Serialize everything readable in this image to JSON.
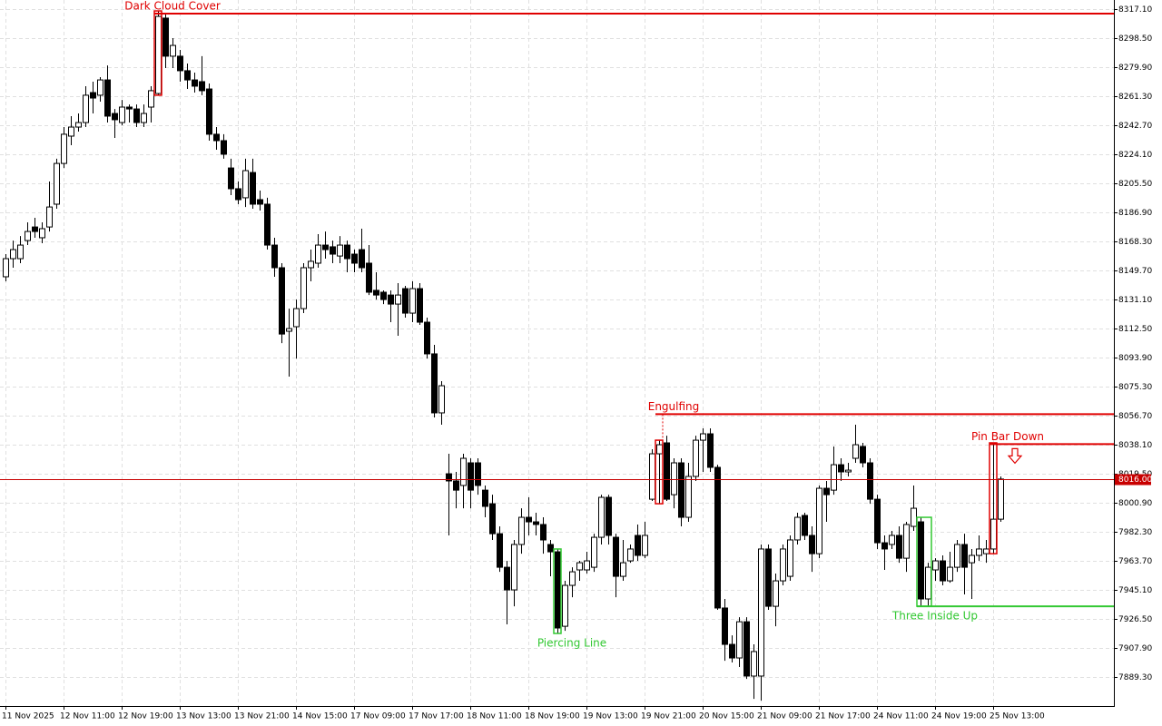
{
  "chart_data": {
    "type": "candlestick",
    "categories": [
      "11 Nov 2025",
      null,
      null,
      null,
      null,
      null,
      null,
      null,
      "12 Nov 11:00",
      null,
      null,
      null,
      null,
      null,
      null,
      null,
      "12 Nov 19:00",
      null,
      null,
      null,
      null,
      null,
      null,
      null,
      "13 Nov 13:00",
      null,
      null,
      null,
      null,
      null,
      null,
      null,
      "13 Nov 21:00",
      null,
      null,
      null,
      null,
      null,
      null,
      null,
      "14 Nov 15:00",
      null,
      null,
      null,
      null,
      null,
      null,
      null,
      "17 Nov 09:00",
      null,
      null,
      null,
      null,
      null,
      null,
      null,
      "17 Nov 17:00",
      null,
      null,
      null,
      null,
      null,
      null,
      null,
      "18 Nov 11:00",
      null,
      null,
      null,
      null,
      null,
      null,
      null,
      "18 Nov 19:00",
      null,
      null,
      null,
      null,
      null,
      null,
      null,
      "19 Nov 13:00",
      null,
      null,
      null,
      null,
      null,
      null,
      null,
      "19 Nov 21:00",
      null,
      null,
      null,
      null,
      null,
      null,
      null,
      "20 Nov 15:00",
      null,
      null,
      null,
      null,
      null,
      null,
      null,
      "21 Nov 09:00",
      null,
      null,
      null,
      null,
      null,
      null,
      null,
      "21 Nov 17:00",
      null,
      null,
      null,
      null,
      null,
      null,
      null,
      "24 Nov 11:00",
      null,
      null,
      null,
      null,
      null,
      null,
      null,
      "24 Nov 19:00",
      null,
      null,
      null,
      null,
      null,
      null,
      null,
      "25 Nov 13:00",
      null
    ],
    "open": [
      8145.6,
      8157.2,
      8157.2,
      8168.8,
      8177.5,
      8170.6,
      8177.5,
      8192.1,
      8218.2,
      8235.7,
      8241.5,
      8244.4,
      8263.6,
      8261.9,
      8271.7,
      8250.2,
      8244.4,
      8254.3,
      8253.1,
      8244.4,
      8254.3,
      8263.0,
      8311.3,
      8286.9,
      8286.9,
      8277.6,
      8271.7,
      8270.6,
      8265.9,
      8236.9,
      8232.8,
      8215.3,
      8202.0,
      8196.2,
      8212.4,
      8195.0,
      8192.1,
      8165.9,
      8151.4,
      8110.7,
      8113.6,
      8125.2,
      8151.4,
      8154.3,
      8165.9,
      8164.8,
      8158.9,
      8165.9,
      8160.1,
      8163.0,
      8154.3,
      8136.9,
      8135.7,
      8133.9,
      8128.1,
      8138.0,
      8122.3,
      8138.0,
      8116.5,
      8096.2,
      8058.4,
      8019.4,
      8014.8,
      8011.9,
      8026.4,
      8026.4,
      8008.9,
      8000.2,
      7981.0,
      7959.5,
      7945.0,
      7974.1,
      7991.5,
      7988.6,
      7986.9,
      7974.1,
      7969.4,
      7921.7,
      7947.9,
      7957.8,
      7957.8,
      7959.5,
      7978.7,
      8004.3,
      7978.7,
      7953.7,
      7963.6,
      7979.9,
      7967.1,
      8003.1,
      8032.2,
      8039.2,
      8006.0,
      8026.4,
      7991.5,
      8017.7,
      8040.9,
      8045.0,
      8023.5,
      7933.4,
      7910.1,
      7901.4,
      7924.6,
      7889.8,
      7889.8,
      7971.2,
      7934.5,
      7950.8,
      7953.7,
      7977.0,
      7992.7,
      7979.9,
      7968.2,
      8010.1,
      8008.9,
      8025.2,
      8020.6,
      8029.3,
      8036.9,
      8026.4,
      8003.1,
      7975.2,
      7974.1,
      7979.9,
      7965.3,
      7985.7,
      7988.6,
      7939.2,
      7957.8,
      7963.6,
      7950.8,
      7959.5,
      7974.1,
      7962.4,
      7967.1,
      7968.2,
      7971.2,
      7990.3
    ],
    "high": [
      8160.1,
      8168.8,
      8171.7,
      8180.5,
      8183.4,
      8180.5,
      8206.6,
      8221.2,
      8241.5,
      8248.5,
      8250.2,
      8267.7,
      8270.6,
      8273.5,
      8281.0,
      8253.1,
      8258.9,
      8256.0,
      8256.0,
      8256.0,
      8267.7,
      8315.9,
      8314.2,
      8298.5,
      8290.9,
      8282.2,
      8276.4,
      8286.9,
      8269.4,
      8241.5,
      8236.9,
      8221.2,
      8206.6,
      8221.2,
      8221.2,
      8200.8,
      8196.2,
      8170.6,
      8154.3,
      8125.2,
      8131.0,
      8154.3,
      8163.0,
      8172.9,
      8174.6,
      8168.8,
      8171.7,
      8168.8,
      8163.0,
      8176.4,
      8165.9,
      8148.5,
      8136.9,
      8136.9,
      8141.5,
      8139.8,
      8142.7,
      8141.5,
      8119.4,
      8102.0,
      8078.7,
      8032.2,
      8020.6,
      8032.2,
      8029.3,
      8029.3,
      8011.9,
      8006.0,
      7985.7,
      7963.6,
      7977.0,
      7997.3,
      8004.3,
      7994.4,
      7991.5,
      7977.0,
      7971.2,
      7950.8,
      7959.5,
      7963.6,
      7969.4,
      7981.0,
      8006.0,
      8006.0,
      7981.0,
      7977.0,
      7974.1,
      7986.9,
      7988.6,
      8035.1,
      8040.9,
      8043.8,
      8029.3,
      8029.3,
      8026.4,
      8043.8,
      8048.5,
      8048.5,
      8025.2,
      7939.2,
      7915.9,
      7927.5,
      7927.5,
      7910.1,
      7974.1,
      7974.1,
      7955.5,
      7974.1,
      7979.9,
      7994.4,
      7994.4,
      7985.7,
      8011.9,
      8014.8,
      8036.9,
      8029.3,
      8026.4,
      8050.8,
      8039.2,
      8029.3,
      8006.0,
      7979.9,
      7982.8,
      7985.7,
      7988.6,
      8011.9,
      7991.5,
      7962.4,
      7965.3,
      7967.1,
      7969.4,
      7977.0,
      7981.0,
      7971.2,
      7979.9,
      7977.0,
      8039.2,
      8017.7
    ],
    "low": [
      8142.7,
      8151.4,
      8154.3,
      8165.9,
      8170.6,
      8167.1,
      8174.6,
      8189.2,
      8215.3,
      8229.9,
      8238.6,
      8241.5,
      8250.2,
      8257.8,
      8244.4,
      8234.5,
      8242.7,
      8244.4,
      8241.5,
      8241.5,
      8244.4,
      8261.9,
      8279.3,
      8279.3,
      8270.6,
      8265.9,
      8263.6,
      8261.9,
      8232.8,
      8227.0,
      8221.2,
      8197.9,
      8192.1,
      8190.3,
      8189.2,
      8188.0,
      8163.0,
      8145.6,
      8103.1,
      8081.6,
      8093.2,
      8122.3,
      8142.7,
      8151.4,
      8157.2,
      8154.3,
      8154.3,
      8148.5,
      8148.5,
      8148.5,
      8133.9,
      8131.0,
      8128.1,
      8116.5,
      8107.8,
      8119.4,
      8116.5,
      8114.8,
      8093.2,
      8055.5,
      8050.8,
      7979.9,
      7997.3,
      7997.3,
      7997.3,
      8006.0,
      7991.5,
      7977.0,
      7956.6,
      7922.9,
      7934.5,
      7968.2,
      7979.9,
      7979.9,
      7968.2,
      7953.7,
      7917.1,
      7918.8,
      7940.3,
      7950.8,
      7955.5,
      7956.6,
      7974.1,
      7974.1,
      7940.3,
      7950.8,
      7962.4,
      7963.6,
      7965.3,
      8002.0,
      8000.2,
      8002.0,
      7997.3,
      7985.7,
      7988.6,
      8014.8,
      8020.6,
      8020.6,
      7932.2,
      7899.6,
      7898.5,
      7895.6,
      7888.0,
      7875.2,
      7874.1,
      7932.2,
      7921.7,
      7947.9,
      7950.8,
      7974.1,
      7977.0,
      7956.6,
      7965.3,
      7988.6,
      8006.0,
      8014.8,
      8017.7,
      8026.4,
      8023.5,
      8000.2,
      7971.2,
      7957.8,
      7971.2,
      7962.4,
      7956.6,
      7982.8,
      7934.5,
      7934.5,
      7950.8,
      7947.9,
      7949.6,
      7956.6,
      7942.1,
      7939.2,
      7963.6,
      7962.4,
      7968.2,
      7988.6
    ],
    "close": [
      8157.2,
      8163.0,
      8165.9,
      8174.6,
      8174.6,
      8176.4,
      8190.3,
      8218.2,
      8236.9,
      8241.5,
      8244.4,
      8261.9,
      8260.1,
      8271.7,
      8248.5,
      8246.2,
      8254.3,
      8253.1,
      8244.4,
      8250.2,
      8264.8,
      8312.4,
      8286.9,
      8293.8,
      8277.6,
      8271.7,
      8267.7,
      8264.8,
      8236.9,
      8232.8,
      8224.1,
      8202.0,
      8195.0,
      8213.6,
      8192.1,
      8192.1,
      8165.9,
      8151.4,
      8108.9,
      8112.4,
      8125.2,
      8151.4,
      8155.5,
      8165.9,
      8163.0,
      8160.1,
      8165.9,
      8157.2,
      8154.3,
      8151.4,
      8135.7,
      8133.9,
      8131.0,
      8128.1,
      8133.9,
      8122.3,
      8138.0,
      8116.5,
      8096.2,
      8058.4,
      8075.8,
      8014.8,
      8008.9,
      8029.3,
      8008.9,
      8011.9,
      7998.5,
      7981.0,
      7959.5,
      7945.0,
      7974.1,
      7991.5,
      7988.6,
      7986.9,
      7977.0,
      7969.4,
      7920.6,
      7947.9,
      7956.6,
      7962.4,
      7963.6,
      7978.7,
      8004.3,
      7979.9,
      7953.7,
      7962.4,
      7971.2,
      7967.1,
      7979.9,
      8032.2,
      8038.0,
      8003.1,
      8026.4,
      7991.5,
      8017.7,
      8040.9,
      8045.0,
      8023.5,
      7933.4,
      7910.1,
      7901.4,
      7924.6,
      7889.8,
      7905.5,
      7971.2,
      7934.5,
      7950.8,
      7971.2,
      7977.0,
      7991.5,
      7979.9,
      7968.2,
      8010.1,
      8006.0,
      8025.2,
      8020.6,
      8021.7,
      8038.0,
      8026.4,
      8003.1,
      7975.2,
      7971.2,
      7979.9,
      7965.3,
      7986.9,
      7997.3,
      7939.2,
      7959.5,
      7963.6,
      7950.8,
      7959.5,
      7974.1,
      7959.5,
      7967.1,
      7971.2,
      7971.2,
      7990.3,
      8016.0
    ],
    "ylim": [
      7870.6,
      8322.9
    ],
    "yticks": [
      {
        "value": 8317.1,
        "label": "8317.10"
      },
      {
        "value": 8298.5,
        "label": "8298.50"
      },
      {
        "value": 8279.9,
        "label": "8279.90"
      },
      {
        "value": 8261.3,
        "label": "8261.30"
      },
      {
        "value": 8242.7,
        "label": "8242.70"
      },
      {
        "value": 8224.1,
        "label": "8224.10"
      },
      {
        "value": 8205.5,
        "label": "8205.50"
      },
      {
        "value": 8186.9,
        "label": "8186.90"
      },
      {
        "value": 8168.3,
        "label": "8168.30"
      },
      {
        "value": 8149.7,
        "label": "8149.70"
      },
      {
        "value": 8131.1,
        "label": "8131.10"
      },
      {
        "value": 8112.5,
        "label": "8112.50"
      },
      {
        "value": 8093.9,
        "label": "8093.90"
      },
      {
        "value": 8075.3,
        "label": "8075.30"
      },
      {
        "value": 8056.7,
        "label": "8056.70"
      },
      {
        "value": 8038.1,
        "label": "8038.10"
      },
      {
        "value": 8019.5,
        "label": "8019.50"
      },
      {
        "value": 8000.9,
        "label": "8000.90"
      },
      {
        "value": 7982.3,
        "label": "7982.30"
      },
      {
        "value": 7963.7,
        "label": "7963.70"
      },
      {
        "value": 7945.1,
        "label": "7945.10"
      },
      {
        "value": 7926.5,
        "label": "7926.50"
      },
      {
        "value": 7907.9,
        "label": "7907.90"
      },
      {
        "value": 7889.3,
        "label": "7889.30"
      }
    ],
    "current_price": {
      "value": 8016.0,
      "label": "8016.00"
    },
    "current_color": "#c80000",
    "grid": true,
    "bull_color": "#ffffff",
    "bear_color": "#000000",
    "patterns": [
      {
        "label": "Dark Cloud Cover",
        "candles": [
          21,
          21
        ],
        "level": 8314.2,
        "color": "#e00000",
        "position": "above"
      },
      {
        "label": "Engulfing",
        "candles": [
          90,
          90
        ],
        "level": 8057.6,
        "color": "#e00000",
        "position": "above"
      },
      {
        "label": "Pin Bar Down",
        "candles": [
          136,
          136
        ],
        "level": 8038.4,
        "color": "#e00000",
        "position": "above",
        "arrow": "down"
      },
      {
        "label": "Three Inside Up",
        "candles": [
          126,
          127
        ],
        "level": 7934.5,
        "color": "#32c832",
        "position": "below"
      },
      {
        "label": "Piercing Line",
        "candles": [
          76,
          76
        ],
        "color": "#32c832",
        "position": "below"
      }
    ]
  }
}
